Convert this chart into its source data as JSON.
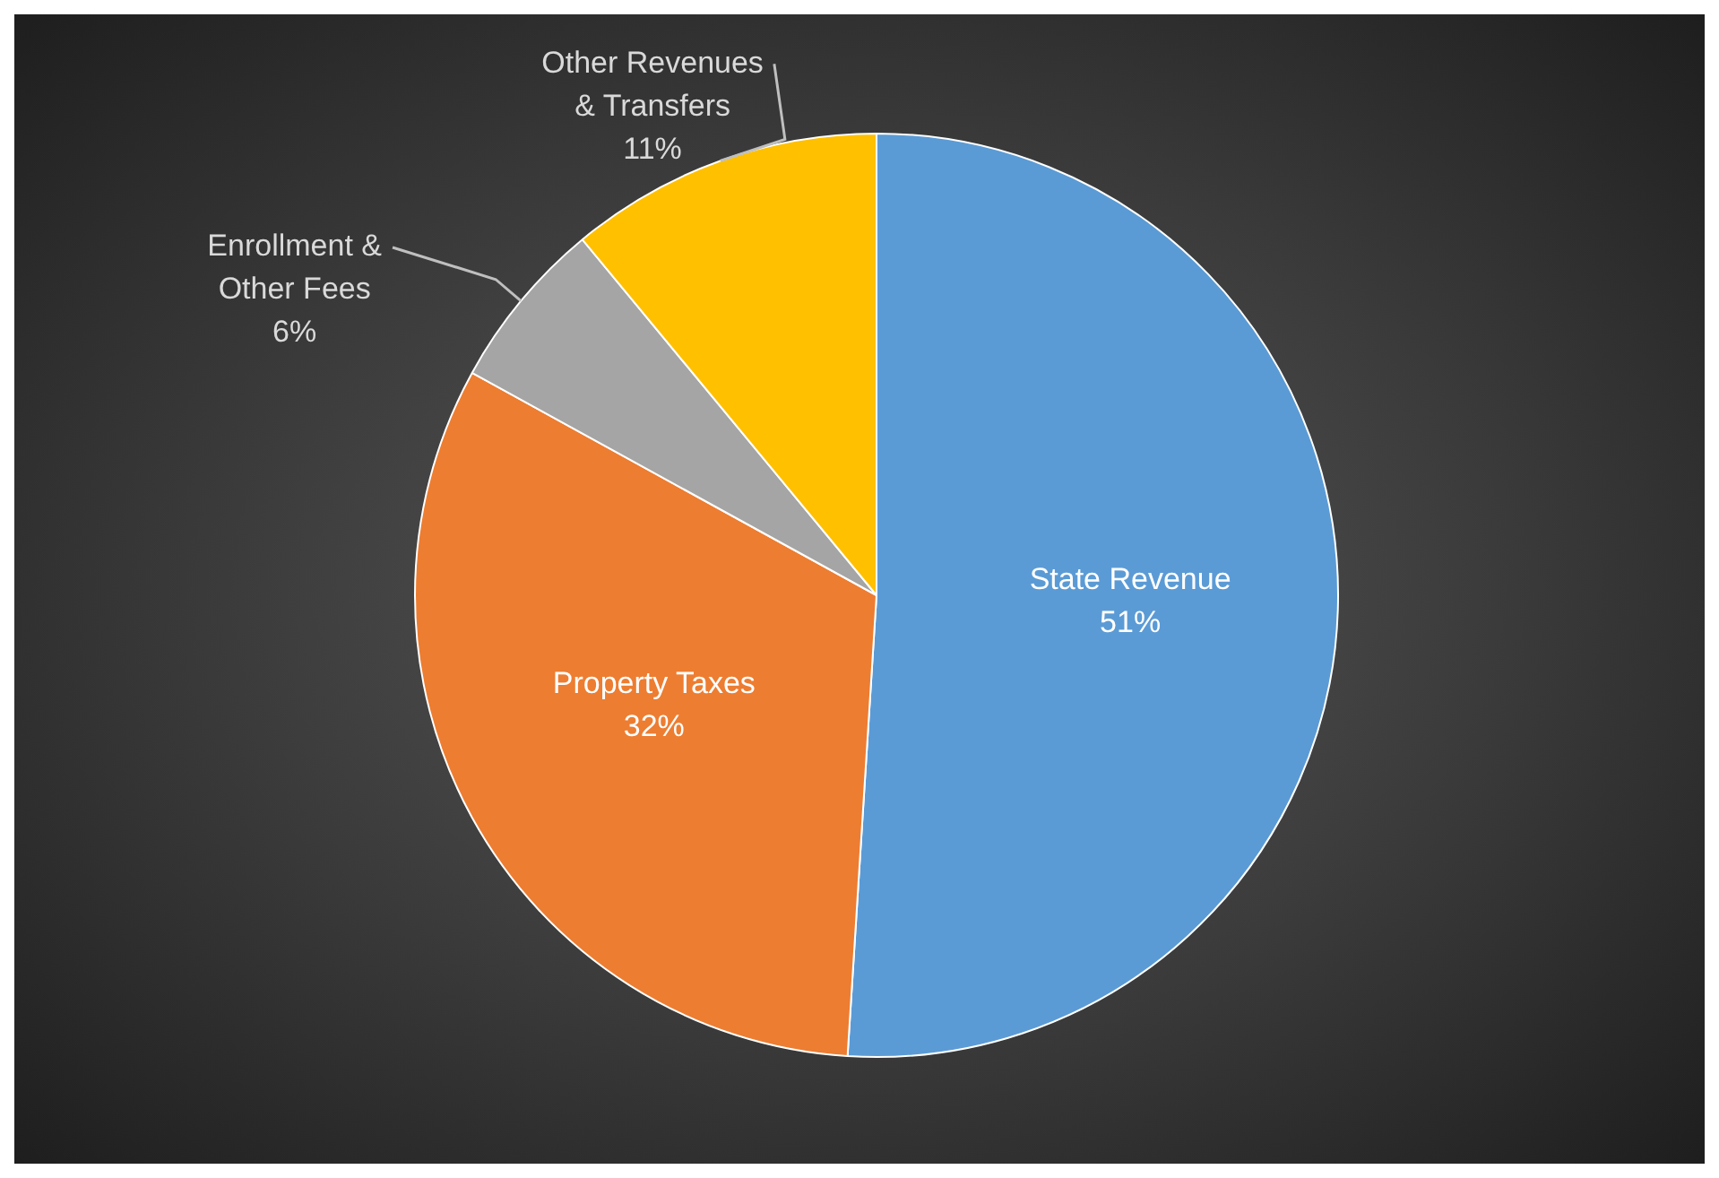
{
  "chart_data": {
    "type": "pie",
    "categories": [
      "State Revenue",
      "Property Taxes",
      "Enrollment & Other Fees",
      "Other Revenues & Transfers"
    ],
    "values": [
      51,
      32,
      6,
      11
    ],
    "colors": [
      "#5b9bd5",
      "#ed7d31",
      "#a5a5a5",
      "#ffc000"
    ],
    "value_labels": [
      "51%",
      "32%",
      "6%",
      "11%"
    ],
    "legend": false
  }
}
